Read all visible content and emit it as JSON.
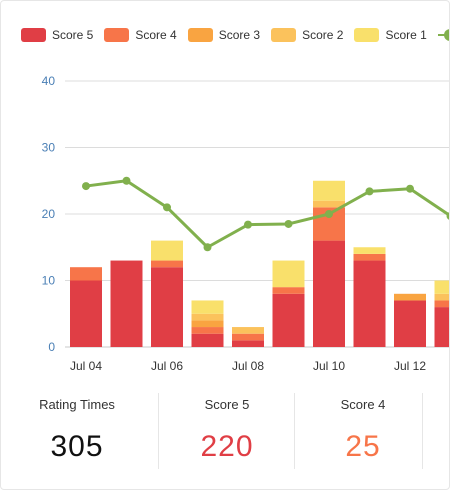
{
  "colors": {
    "score5": "#e03e45",
    "score4": "#f77549",
    "score3": "#f9a441",
    "score2": "#fbc25c",
    "score1": "#f9e06b",
    "line": "#81b04d",
    "axis_text": "#4a7fb5",
    "grid": "#dcdcdc"
  },
  "legend": [
    {
      "label": "Score 5",
      "color": "#e03e45"
    },
    {
      "label": "Score 4",
      "color": "#f77549"
    },
    {
      "label": "Score 3",
      "color": "#f9a441"
    },
    {
      "label": "Score 2",
      "color": "#fbc25c"
    },
    {
      "label": "Score 1",
      "color": "#f9e06b"
    }
  ],
  "chart_data": {
    "type": "bar",
    "stacked": true,
    "categories": [
      "Jul 04",
      "Jul 05",
      "Jul 06",
      "Jul 07",
      "Jul 08",
      "Jul 09",
      "Jul 10",
      "Jul 11",
      "Jul 12",
      "Jul 13"
    ],
    "x_tick_labels": [
      "Jul 04",
      "Jul 06",
      "Jul 08",
      "Jul 10",
      "Jul 12"
    ],
    "series": [
      {
        "name": "Score 5",
        "values": [
          10,
          13,
          12,
          2,
          1,
          8,
          16,
          13,
          7,
          6
        ]
      },
      {
        "name": "Score 4",
        "values": [
          2,
          0,
          1,
          1,
          1,
          1,
          5,
          1,
          0,
          1
        ]
      },
      {
        "name": "Score 3",
        "values": [
          0,
          0,
          0,
          1,
          0,
          0,
          0,
          0,
          1,
          0
        ]
      },
      {
        "name": "Score 2",
        "values": [
          0,
          0,
          0,
          1,
          1,
          0,
          1,
          0,
          0,
          1
        ]
      },
      {
        "name": "Score 1",
        "values": [
          0,
          0,
          3,
          2,
          0,
          4,
          3,
          1,
          0,
          2
        ]
      }
    ],
    "line_series": {
      "values": [
        24.2,
        25,
        21,
        15,
        18.4,
        18.5,
        20,
        23.4,
        23.8,
        19.7
      ]
    },
    "y_ticks": [
      0,
      10,
      20,
      30,
      40
    ],
    "ylim": [
      0,
      40
    ],
    "grid": true,
    "legend_position": "top"
  },
  "stats": [
    {
      "label": "Rating Times",
      "value": "305",
      "color": "#111111"
    },
    {
      "label": "Score 5",
      "value": "220",
      "color": "#e03e45"
    },
    {
      "label": "Score 4",
      "value": "25",
      "color": "#f77549"
    }
  ]
}
